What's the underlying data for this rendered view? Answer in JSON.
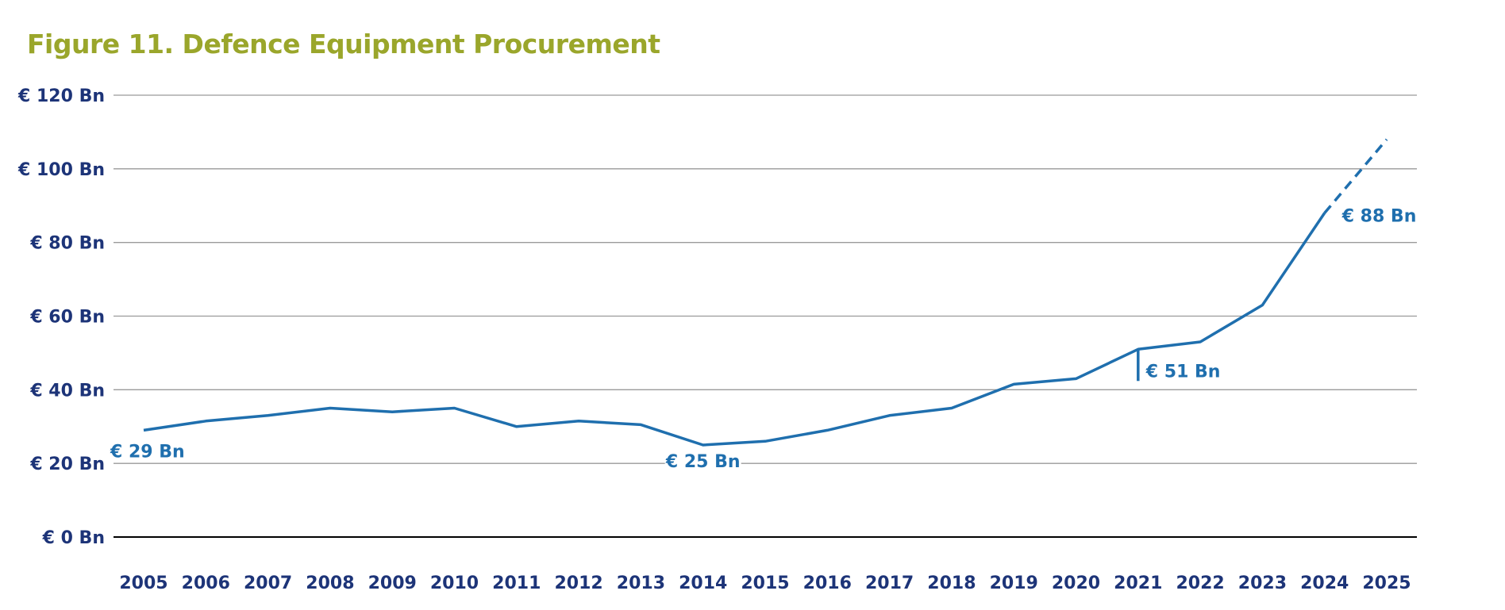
{
  "chart_data": {
    "type": "line",
    "title": "Figure 11. Defence Equipment Procurement",
    "xlabel": "",
    "ylabel": "",
    "categories": [
      "2005",
      "2006",
      "2007",
      "2008",
      "2009",
      "2010",
      "2011",
      "2012",
      "2013",
      "2014",
      "2015",
      "2016",
      "2017",
      "2018",
      "2019",
      "2020",
      "2021",
      "2022",
      "2023",
      "2024",
      "2025"
    ],
    "y_ticks": [
      0,
      20,
      40,
      60,
      80,
      100,
      120
    ],
    "y_tick_labels": [
      "€ 0 Bn",
      "€ 20 Bn",
      "€ 40 Bn",
      "€ 60 Bn",
      "€ 80 Bn",
      "€ 100 Bn",
      "€ 120 Bn"
    ],
    "ylim": [
      0,
      120
    ],
    "grid": true,
    "series": [
      {
        "values": [
          29,
          31.5,
          33,
          35,
          34,
          35,
          30,
          31.5,
          30.5,
          25,
          26,
          29,
          33,
          35,
          41.5,
          43,
          51,
          53,
          63,
          88,
          null
        ],
        "style": "solid"
      },
      {
        "values": [
          null,
          null,
          null,
          null,
          null,
          null,
          null,
          null,
          null,
          null,
          null,
          null,
          null,
          null,
          null,
          null,
          null,
          null,
          null,
          88,
          108
        ],
        "style": "dashed"
      }
    ],
    "annotations": [
      {
        "text": "€ 29 Bn",
        "x": "2005",
        "y": 29
      },
      {
        "text": "€ 25 Bn",
        "x": "2014",
        "y": 25
      },
      {
        "text": "€ 51 Bn",
        "x": "2021",
        "y": 51
      },
      {
        "text": "€ 88 Bn",
        "x": "2024",
        "y": 88
      }
    ],
    "colors": {
      "title": "#9aa62b",
      "line": "#1f6fae",
      "axis_text": "#1d3478",
      "grid": "#9a9a9a",
      "baseline": "#000000"
    }
  }
}
